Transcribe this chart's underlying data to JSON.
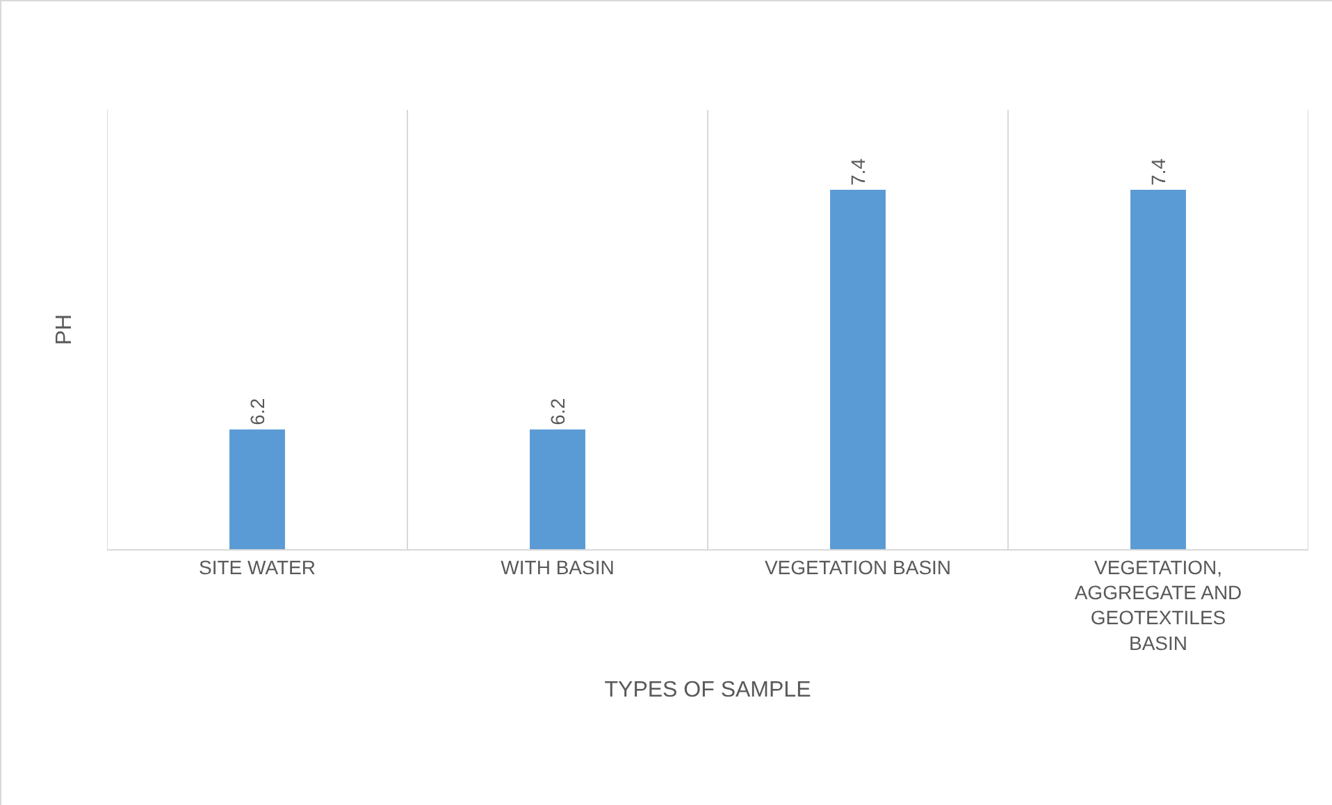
{
  "chart_data": {
    "type": "bar",
    "categories": [
      "SITE WATER",
      "WITH BASIN",
      "VEGETATION BASIN",
      "VEGETATION, AGGREGATE AND GEOTEXTILES BASIN"
    ],
    "values": [
      6.2,
      6.2,
      7.4,
      7.4
    ],
    "color": "#5b9bd5",
    "xlabel": "TYPES OF SAMPLE",
    "ylabel": "PH",
    "ylim": [
      5.6,
      7.8
    ],
    "data_labels": true,
    "grid": "x",
    "tick_labels": "x"
  }
}
